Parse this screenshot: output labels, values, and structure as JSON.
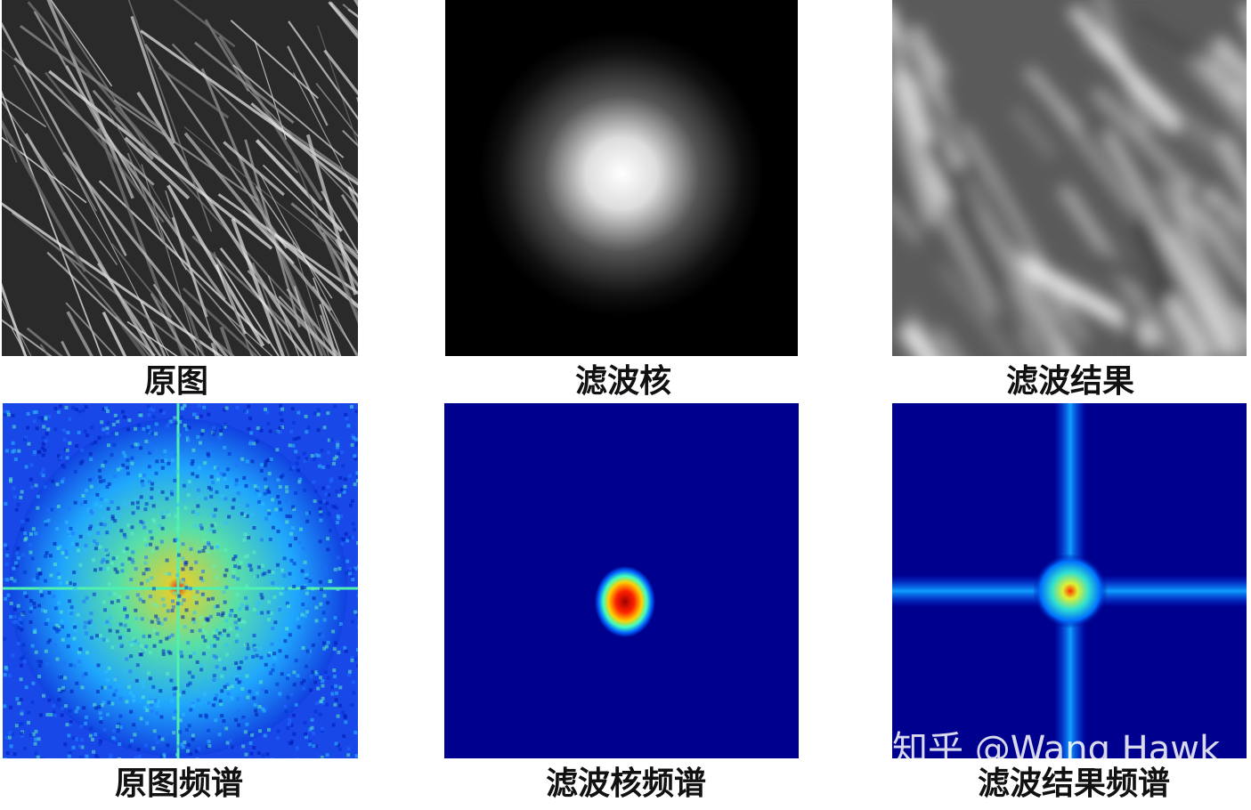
{
  "panels": [
    {
      "caption": "原图"
    },
    {
      "caption": "滤波核"
    },
    {
      "caption": "滤波结果"
    },
    {
      "caption": "原图频谱"
    },
    {
      "caption": "滤波核频谱"
    },
    {
      "caption": "滤波结果频谱"
    }
  ],
  "watermark": "知乎 @Wang Hawk"
}
